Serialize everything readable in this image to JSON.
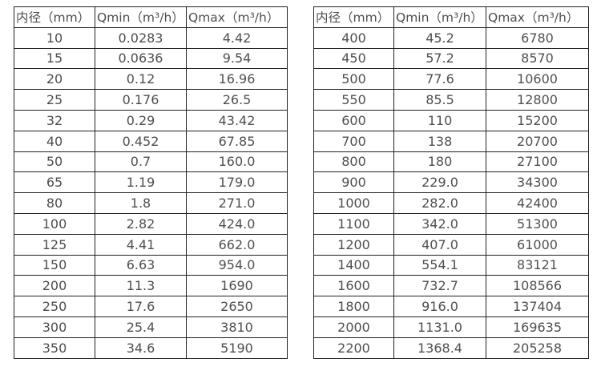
{
  "colors": {
    "background": "#ffffff",
    "table_border": "#212121",
    "text": "#4f4f4f"
  },
  "chart_data": [
    {
      "type": "table",
      "headers": [
        "内径（mm）",
        "Qmin（m³/h）",
        "Qmax（m³/h）"
      ],
      "rows": [
        [
          "10",
          "0.0283",
          "4.42"
        ],
        [
          "15",
          "0.0636",
          "9.54"
        ],
        [
          "20",
          "0.12",
          "16.96"
        ],
        [
          "25",
          "0.176",
          "26.5"
        ],
        [
          "32",
          "0.29",
          "43.42"
        ],
        [
          "40",
          "0.452",
          "67.85"
        ],
        [
          "50",
          "0.7",
          "160.0"
        ],
        [
          "65",
          "1.19",
          "179.0"
        ],
        [
          "80",
          "1.8",
          "271.0"
        ],
        [
          "100",
          "2.82",
          "424.0"
        ],
        [
          "125",
          "4.41",
          "662.0"
        ],
        [
          "150",
          "6.63",
          "954.0"
        ],
        [
          "200",
          "11.3",
          "1690"
        ],
        [
          "250",
          "17.6",
          "2650"
        ],
        [
          "300",
          "25.4",
          "3810"
        ],
        [
          "350",
          "34.6",
          "5190"
        ]
      ]
    },
    {
      "type": "table",
      "headers": [
        "内径（mm）",
        "Qmin（m³/h）",
        "Qmax（m³/h）"
      ],
      "rows": [
        [
          "400",
          "45.2",
          "6780"
        ],
        [
          "450",
          "57.2",
          "8570"
        ],
        [
          "500",
          "77.6",
          "10600"
        ],
        [
          "550",
          "85.5",
          "12800"
        ],
        [
          "600",
          "110",
          "15200"
        ],
        [
          "700",
          "138",
          "20700"
        ],
        [
          "800",
          "180",
          "27100"
        ],
        [
          "900",
          "229.0",
          "34300"
        ],
        [
          "1000",
          "282.0",
          "42400"
        ],
        [
          "1100",
          "342.0",
          "51300"
        ],
        [
          "1200",
          "407.0",
          "61000"
        ],
        [
          "1400",
          "554.1",
          "83121"
        ],
        [
          "1600",
          "732.7",
          "108566"
        ],
        [
          "1800",
          "916.0",
          "137404"
        ],
        [
          "2000",
          "1131.0",
          "169635"
        ],
        [
          "2200",
          "1368.4",
          "205258"
        ]
      ]
    }
  ]
}
